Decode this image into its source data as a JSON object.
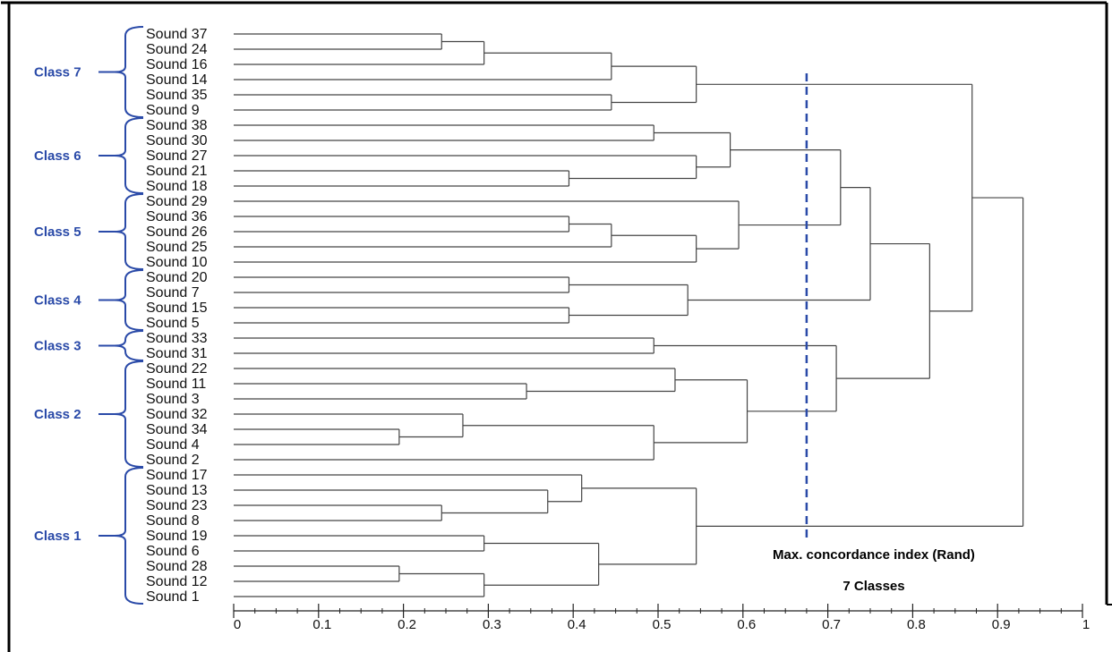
{
  "chart_data": {
    "type": "dendrogram",
    "leaves": [
      "Sound 37",
      "Sound 24",
      "Sound 16",
      "Sound 14",
      "Sound 35",
      "Sound 9",
      "Sound 38",
      "Sound 30",
      "Sound 27",
      "Sound 21",
      "Sound 18",
      "Sound 29",
      "Sound 36",
      "Sound 26",
      "Sound 25",
      "Sound 10",
      "Sound 20",
      "Sound 7",
      "Sound 15",
      "Sound 5",
      "Sound 33",
      "Sound 31",
      "Sound 22",
      "Sound 11",
      "Sound 3",
      "Sound 32",
      "Sound 34",
      "Sound 4",
      "Sound 2",
      "Sound 17",
      "Sound 13",
      "Sound 23",
      "Sound 8",
      "Sound 19",
      "Sound 6",
      "Sound 28",
      "Sound 12",
      "Sound 1"
    ],
    "merges": [
      {
        "id": "m1",
        "children": [
          "Sound 37",
          "Sound 24"
        ],
        "height": 0.245
      },
      {
        "id": "m2",
        "children": [
          "m1",
          "Sound 16"
        ],
        "height": 0.295
      },
      {
        "id": "m3",
        "children": [
          "m2",
          "Sound 14"
        ],
        "height": 0.445
      },
      {
        "id": "m4",
        "children": [
          "Sound 35",
          "Sound 9"
        ],
        "height": 0.445
      },
      {
        "id": "m5",
        "children": [
          "m3",
          "m4"
        ],
        "height": 0.545
      },
      {
        "id": "m6",
        "children": [
          "Sound 38",
          "Sound 30"
        ],
        "height": 0.495
      },
      {
        "id": "m7",
        "children": [
          "Sound 21",
          "Sound 18"
        ],
        "height": 0.395
      },
      {
        "id": "m8",
        "children": [
          "Sound 27",
          "m7"
        ],
        "height": 0.545
      },
      {
        "id": "m9",
        "children": [
          "m6",
          "m8"
        ],
        "height": 0.585
      },
      {
        "id": "m10",
        "children": [
          "Sound 36",
          "Sound 26"
        ],
        "height": 0.395
      },
      {
        "id": "m11",
        "children": [
          "m10",
          "Sound 25"
        ],
        "height": 0.445
      },
      {
        "id": "m12",
        "children": [
          "m11",
          "Sound 10"
        ],
        "height": 0.545
      },
      {
        "id": "m13",
        "children": [
          "Sound 29",
          "m12"
        ],
        "height": 0.595
      },
      {
        "id": "m14",
        "children": [
          "m9",
          "m13"
        ],
        "height": 0.715
      },
      {
        "id": "m15",
        "children": [
          "Sound 20",
          "Sound 7"
        ],
        "height": 0.395
      },
      {
        "id": "m16",
        "children": [
          "Sound 15",
          "Sound 5"
        ],
        "height": 0.395
      },
      {
        "id": "m17",
        "children": [
          "m15",
          "m16"
        ],
        "height": 0.535
      },
      {
        "id": "m18",
        "children": [
          "m14",
          "m17"
        ],
        "height": 0.75
      },
      {
        "id": "m19",
        "children": [
          "Sound 33",
          "Sound 31"
        ],
        "height": 0.495
      },
      {
        "id": "m20",
        "children": [
          "Sound 11",
          "Sound 3"
        ],
        "height": 0.345
      },
      {
        "id": "m21",
        "children": [
          "Sound 22",
          "m20"
        ],
        "height": 0.52
      },
      {
        "id": "m22",
        "children": [
          "Sound 34",
          "Sound 4"
        ],
        "height": 0.195
      },
      {
        "id": "m23",
        "children": [
          "Sound 32",
          "m22"
        ],
        "height": 0.27
      },
      {
        "id": "m24",
        "children": [
          "m23",
          "Sound 2"
        ],
        "height": 0.495
      },
      {
        "id": "m25",
        "children": [
          "m21",
          "m24"
        ],
        "height": 0.605
      },
      {
        "id": "m26",
        "children": [
          "m19",
          "m25"
        ],
        "height": 0.71
      },
      {
        "id": "m27",
        "children": [
          "m18",
          "m26"
        ],
        "height": 0.82
      },
      {
        "id": "m28",
        "children": [
          "m5",
          "m27"
        ],
        "height": 0.87
      },
      {
        "id": "m29",
        "children": [
          "Sound 23",
          "Sound 8"
        ],
        "height": 0.245
      },
      {
        "id": "m30",
        "children": [
          "Sound 13",
          "m29"
        ],
        "height": 0.37
      },
      {
        "id": "m31",
        "children": [
          "Sound 17",
          "m30"
        ],
        "height": 0.41
      },
      {
        "id": "m32",
        "children": [
          "Sound 19",
          "Sound 6"
        ],
        "height": 0.295
      },
      {
        "id": "m33",
        "children": [
          "Sound 28",
          "Sound 12"
        ],
        "height": 0.195
      },
      {
        "id": "m34",
        "children": [
          "m33",
          "Sound 1"
        ],
        "height": 0.295
      },
      {
        "id": "m35",
        "children": [
          "m32",
          "m34"
        ],
        "height": 0.43
      },
      {
        "id": "m36",
        "children": [
          "m31",
          "m35"
        ],
        "height": 0.545
      },
      {
        "id": "m37",
        "children": [
          "m28",
          "m36"
        ],
        "height": 0.93
      }
    ],
    "classes": [
      {
        "label": "Class 7",
        "first": "Sound 37",
        "last": "Sound 9"
      },
      {
        "label": "Class 6",
        "first": "Sound 38",
        "last": "Sound 18"
      },
      {
        "label": "Class 5",
        "first": "Sound 29",
        "last": "Sound 10"
      },
      {
        "label": "Class 4",
        "first": "Sound 20",
        "last": "Sound 5"
      },
      {
        "label": "Class 3",
        "first": "Sound 33",
        "last": "Sound 31"
      },
      {
        "label": "Class 2",
        "first": "Sound 22",
        "last": "Sound 2"
      },
      {
        "label": "Class 1",
        "first": "Sound 17",
        "last": "Sound 1"
      }
    ],
    "xlim": [
      0,
      1
    ],
    "xticks": [
      0,
      0.1,
      0.2,
      0.3,
      0.4,
      0.5,
      0.6,
      0.7,
      0.8,
      0.9,
      1
    ],
    "xtick_labels": [
      "0",
      "0.1",
      "0.2",
      "0.3",
      "0.4",
      "0.5",
      "0.6",
      "0.7",
      "0.8",
      "0.9",
      "1"
    ],
    "cut_line": {
      "value": 0.675,
      "style": "dashed"
    },
    "annotations": [
      "Max. concordance index (Rand)",
      "7 Classes"
    ],
    "colors": {
      "tree": "#444444",
      "class": "#2a4aa8",
      "cut_line": "#2a4aa8",
      "text": "#111111"
    }
  }
}
